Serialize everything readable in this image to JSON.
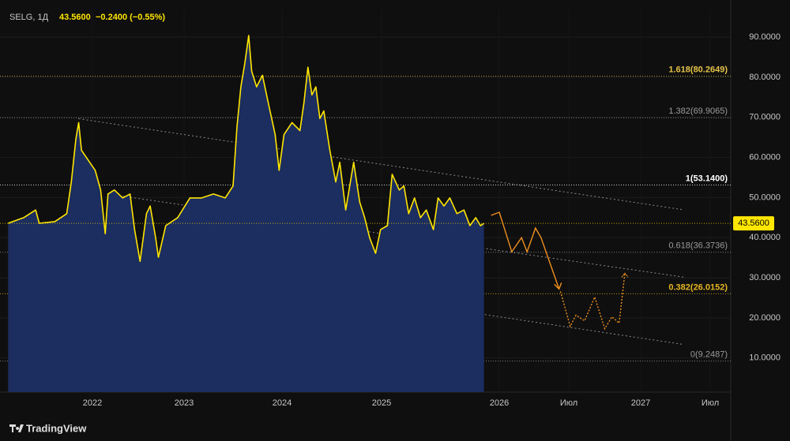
{
  "chart_data": {
    "type": "area",
    "title": "SELG, 1Д",
    "price": {
      "value": 43.56,
      "label": "43.5600"
    },
    "change": "−0.2400 (−0.55%)",
    "branding": "TradingView",
    "xlim": [
      2021.08,
      2027.65
    ],
    "ylim": [
      1.5,
      96.9
    ],
    "xticks": [
      2022,
      2023,
      2024,
      2025,
      2026,
      {
        "value": 2026.5,
        "label": "Июл"
      },
      2027,
      {
        "value": 2027.5,
        "label": "Июл"
      }
    ],
    "yticks": [
      {
        "value": 10,
        "label": "10.0000"
      },
      {
        "value": 20,
        "label": "20.0000"
      },
      {
        "value": 30,
        "label": "30.0000"
      },
      {
        "value": 40,
        "label": "40.0000"
      },
      {
        "value": 50,
        "label": "50.0000"
      },
      {
        "value": 60,
        "label": "60.0000"
      },
      {
        "value": 70,
        "label": "70.0000"
      },
      {
        "value": 80,
        "label": "80.0000"
      },
      {
        "value": 90,
        "label": "90.0000"
      }
    ],
    "series": [
      {
        "color": "#ffe600",
        "fill": "#1c2d5f",
        "x": [
          2021.08,
          2021.25,
          2021.38,
          2021.42,
          2021.59,
          2021.72,
          2021.77,
          2021.82,
          2021.85,
          2021.88,
          2021.94,
          2022.03,
          2022.09,
          2022.14,
          2022.17,
          2022.24,
          2022.33,
          2022.41,
          2022.46,
          2022.52,
          2022.59,
          2022.63,
          2022.69,
          2022.72,
          2022.8,
          2022.93,
          2023.06,
          2023.18,
          2023.3,
          2023.42,
          2023.5,
          2023.54,
          2023.58,
          2023.62,
          2023.66,
          2023.69,
          2023.74,
          2023.8,
          2023.86,
          2023.93,
          2023.97,
          2024.02,
          2024.1,
          2024.18,
          2024.22,
          2024.26,
          2024.3,
          2024.34,
          2024.38,
          2024.42,
          2024.48,
          2024.54,
          2024.58,
          2024.64,
          2024.72,
          2024.78,
          2024.83,
          2024.88,
          2024.94,
          2024.99,
          2025.05,
          2025.09,
          2025.15,
          2025.19,
          2025.23,
          2025.28,
          2025.33,
          2025.38,
          2025.44,
          2025.48,
          2025.53,
          2025.58,
          2025.64,
          2025.7,
          2025.75,
          2025.8,
          2025.84,
          2025.87
        ],
        "values": [
          43.6,
          45.0,
          46.9,
          43.6,
          44.0,
          46.0,
          53.9,
          64.7,
          68.7,
          61.8,
          59.8,
          56.8,
          51.9,
          41.0,
          50.9,
          51.9,
          49.9,
          50.9,
          42.0,
          34.1,
          46.0,
          47.9,
          40.0,
          35.1,
          43.0,
          45.0,
          49.9,
          49.9,
          50.9,
          49.9,
          52.9,
          67.7,
          77.6,
          83.5,
          90.4,
          81.5,
          77.6,
          80.5,
          73.6,
          65.7,
          56.8,
          65.7,
          68.7,
          66.7,
          73.6,
          82.5,
          75.6,
          77.6,
          69.7,
          71.6,
          61.8,
          53.9,
          58.8,
          46.9,
          58.8,
          48.9,
          45.0,
          40.0,
          36.1,
          42.0,
          43.0,
          55.8,
          51.9,
          52.9,
          46.0,
          49.9,
          45.0,
          46.9,
          42.0,
          49.9,
          47.9,
          49.9,
          46.0,
          46.9,
          43.0,
          45.0,
          43.0,
          43.56
        ]
      }
    ],
    "levels": [
      {
        "value": 80.2649,
        "label": "1.618(80.2649)",
        "color": "#e6c34a"
      },
      {
        "value": 69.9065,
        "label": "1.382(69.9065)",
        "color": "#9a9a9a"
      },
      {
        "value": 53.14,
        "label": "1(53.1400)",
        "color": "#ffffff"
      },
      {
        "value": 36.3736,
        "label": "0.618(36.3736)",
        "color": "#9a9a9a"
      },
      {
        "value": 26.0152,
        "label": "0.382(26.0152)",
        "color": "#e6b422"
      },
      {
        "value": 9.2487,
        "label": "0(9.2487)",
        "color": "#9a9a9a"
      }
    ],
    "channel_lines": [
      {
        "x": [
          2021.85,
          2027.31
        ],
        "values": [
          69.65,
          46.94
        ]
      },
      {
        "x": [
          2022.16,
          2027.31
        ],
        "values": [
          50.89,
          30.15
        ]
      },
      {
        "x": [
          2021.85,
          2027.31
        ],
        "values": [
          36.07,
          13.36
        ]
      }
    ],
    "projection": {
      "color": "#f0901e",
      "solid": {
        "x": [
          2025.93,
          2026.0,
          2026.09,
          2026.16,
          2026.2,
          2026.26,
          2026.3,
          2026.43
        ],
        "values": [
          45.56,
          46.35,
          36.47,
          40.02,
          36.47,
          42.4,
          40.02,
          27.19
        ]
      },
      "dotted": {
        "x": [
          2026.44,
          2026.51,
          2026.55,
          2026.61,
          2026.68,
          2026.75,
          2026.8,
          2026.85,
          2026.89
        ],
        "values": [
          26.6,
          17.9,
          20.67,
          19.28,
          25.21,
          17.31,
          20.27,
          18.69,
          31.14
        ]
      }
    }
  }
}
